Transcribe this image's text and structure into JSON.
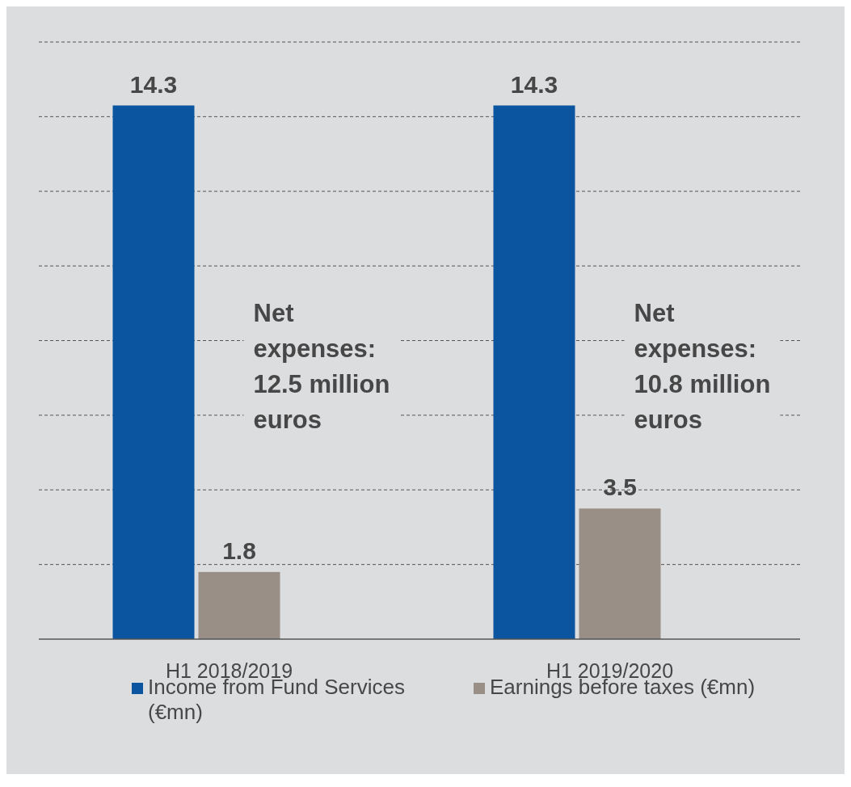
{
  "chart_data": {
    "type": "bar",
    "categories": [
      "H1 2018/2019",
      "H1 2019/2020"
    ],
    "series": [
      {
        "name": "Income from Fund Services (€mn)",
        "color": "#0b55a0",
        "values": [
          14.3,
          14.3
        ]
      },
      {
        "name": "Earnings before taxes (€mn)",
        "color": "#998f86",
        "values": [
          1.8,
          3.5
        ]
      }
    ],
    "ylim": [
      0,
      16
    ],
    "yticks": [
      {
        "value": 2,
        "label": null
      },
      {
        "value": 4,
        "label": null
      },
      {
        "value": 6,
        "label": null
      },
      {
        "value": 8,
        "label": null
      },
      {
        "value": 10,
        "label": null
      },
      {
        "value": 12,
        "label": null
      },
      {
        "value": 14,
        "label": null
      },
      {
        "value": 16,
        "label": null
      }
    ],
    "tick_labels": "x",
    "grid": "y",
    "legend": "bottom",
    "data_labels": true,
    "annotations": [
      "Net expenses: 12.5 million euros",
      "Net expenses: 10.8 million euros"
    ]
  }
}
